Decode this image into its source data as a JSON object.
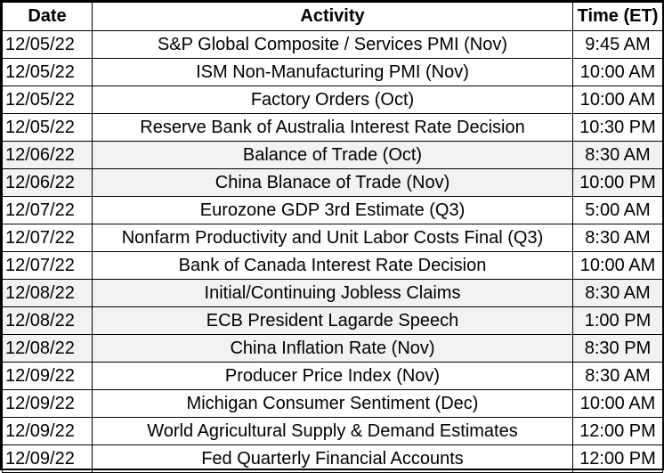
{
  "headers": {
    "date": "Date",
    "activity": "Activity",
    "time": "Time (ET)"
  },
  "rows": [
    {
      "date": "12/05/22",
      "activity": "S&P Global Composite / Services PMI (Nov)",
      "time": "9:45 AM",
      "shaded": false
    },
    {
      "date": "12/05/22",
      "activity": "ISM Non-Manufacturing PMI (Nov)",
      "time": "10:00 AM",
      "shaded": false
    },
    {
      "date": "12/05/22",
      "activity": "Factory Orders (Oct)",
      "time": "10:00 AM",
      "shaded": false
    },
    {
      "date": "12/05/22",
      "activity": "Reserve Bank of Australia Interest Rate Decision",
      "time": "10:30 PM",
      "shaded": false
    },
    {
      "date": "12/06/22",
      "activity": "Balance of Trade (Oct)",
      "time": "8:30 AM",
      "shaded": true
    },
    {
      "date": "12/06/22",
      "activity": "China Blanace of Trade (Nov)",
      "time": "10:00 PM",
      "shaded": true
    },
    {
      "date": "12/07/22",
      "activity": "Eurozone GDP 3rd Estimate (Q3)",
      "time": "5:00 AM",
      "shaded": false
    },
    {
      "date": "12/07/22",
      "activity": "Nonfarm Productivity and Unit Labor Costs Final (Q3)",
      "time": "8:30 AM",
      "shaded": false
    },
    {
      "date": "12/07/22",
      "activity": "Bank of Canada Interest Rate Decision",
      "time": "10:00 AM",
      "shaded": false
    },
    {
      "date": "12/08/22",
      "activity": "Initial/Continuing Jobless Claims",
      "time": "8:30 AM",
      "shaded": true
    },
    {
      "date": "12/08/22",
      "activity": "ECB President Lagarde Speech",
      "time": "1:00 PM",
      "shaded": true
    },
    {
      "date": "12/08/22",
      "activity": "China Inflation Rate (Nov)",
      "time": "8:30 PM",
      "shaded": true
    },
    {
      "date": "12/09/22",
      "activity": "Producer Price Index (Nov)",
      "time": "8:30 AM",
      "shaded": false
    },
    {
      "date": "12/09/22",
      "activity": "Michigan Consumer Sentiment (Dec)",
      "time": "10:00 AM",
      "shaded": false
    },
    {
      "date": "12/09/22",
      "activity": "World Agricultural Supply & Demand Estimates",
      "time": "12:00 PM",
      "shaded": false
    },
    {
      "date": "12/09/22",
      "activity": "Fed Quarterly Financial Accounts",
      "time": "12:00 PM",
      "shaded": false
    }
  ],
  "colors": {
    "shade": "#f2f2f2",
    "border": "#000000"
  }
}
